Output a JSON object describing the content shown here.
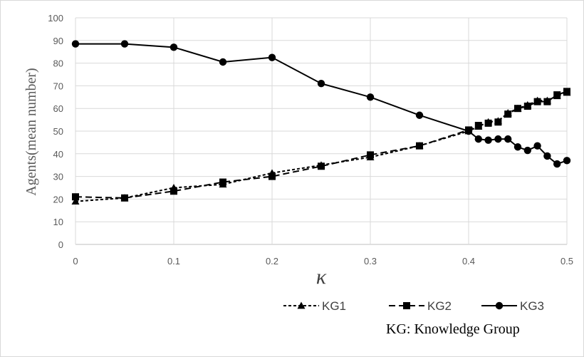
{
  "chart_data": {
    "type": "line",
    "title": "",
    "xlabel": "κ",
    "ylabel": "Agents(mean number)",
    "xlim": [
      0,
      0.5
    ],
    "ylim": [
      0,
      100
    ],
    "x_ticks": [
      "0",
      "0.1",
      "0.2",
      "0.3",
      "0.4",
      "0.5"
    ],
    "y_ticks": [
      "0",
      "10",
      "20",
      "30",
      "40",
      "50",
      "60",
      "70",
      "80",
      "90",
      "100"
    ],
    "grid": true,
    "legend_position": "bottom-right",
    "x": [
      0,
      0.05,
      0.1,
      0.15,
      0.2,
      0.25,
      0.3,
      0.35,
      0.4,
      0.41,
      0.42,
      0.43,
      0.44,
      0.45,
      0.46,
      0.47,
      0.48,
      0.49,
      0.5
    ],
    "series": [
      {
        "name": "KG1",
        "marker": "triangle",
        "line_style": "dashed-short",
        "color": "#000000",
        "values": [
          19,
          20.5,
          25,
          26.5,
          31.5,
          35,
          38.5,
          43.5,
          50,
          52,
          54,
          54.5,
          58,
          60,
          61.5,
          63.5,
          63.5,
          65.5,
          67
        ]
      },
      {
        "name": "KG2",
        "marker": "square",
        "line_style": "dashed-long",
        "color": "#000000",
        "values": [
          21,
          20.5,
          23.5,
          27.5,
          30,
          34.5,
          39.5,
          43.5,
          50.5,
          52.5,
          53.5,
          54,
          57.5,
          60,
          61,
          63,
          63,
          66,
          67.5
        ]
      },
      {
        "name": "KG3",
        "marker": "circle",
        "line_style": "solid",
        "color": "#000000",
        "values": [
          88.5,
          88.5,
          87,
          80.5,
          82.5,
          71,
          65,
          57,
          50,
          46.5,
          46,
          46.5,
          46.5,
          43,
          41.5,
          43.5,
          39,
          35.5,
          37
        ]
      }
    ],
    "annotation": "KG: Knowledge Group"
  }
}
